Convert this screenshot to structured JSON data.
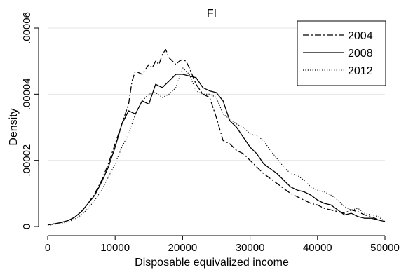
{
  "chart_data": {
    "type": "line",
    "title": "FI",
    "xlabel": "Disposable equivalized income",
    "ylabel": "Density",
    "xlim": [
      0,
      50000
    ],
    "ylim": [
      0,
      6e-05
    ],
    "x_ticks": [
      {
        "value": 0,
        "label": "0"
      },
      {
        "value": 10000,
        "label": "10000"
      },
      {
        "value": 20000,
        "label": "20000"
      },
      {
        "value": 30000,
        "label": "30000"
      },
      {
        "value": 40000,
        "label": "40000"
      },
      {
        "value": 50000,
        "label": "50000"
      }
    ],
    "y_ticks": [
      {
        "value": 0,
        "label": "0"
      },
      {
        "value": 2e-05,
        "label": ".00002"
      },
      {
        "value": 4e-05,
        "label": ".00004"
      },
      {
        "value": 6e-05,
        "label": ".00006"
      }
    ],
    "grid": true,
    "legend_position": "top-right",
    "series": [
      {
        "name": "2004",
        "style": "dashdot",
        "x": [
          0,
          1000,
          2000,
          3000,
          4000,
          5000,
          6000,
          7000,
          8000,
          9000,
          10000,
          11000,
          12000,
          12500,
          13000,
          14000,
          15000,
          15500,
          16000,
          16500,
          17000,
          17500,
          18000,
          19000,
          19500,
          20000,
          20500,
          21000,
          22000,
          23000,
          24000,
          25000,
          26000,
          27000,
          28000,
          29000,
          30000,
          31000,
          32000,
          33000,
          34000,
          35000,
          36000,
          37000,
          38000,
          39000,
          40000,
          41000,
          42000,
          43000,
          44000,
          45000,
          46000,
          47000,
          48000,
          49000,
          50000
        ],
        "y": [
          5e-07,
          8e-07,
          1.2e-06,
          1.8e-06,
          2.8e-06,
          4.5e-06,
          7e-06,
          1e-05,
          1.4e-05,
          1.9e-05,
          2.5e-05,
          3.1e-05,
          3.7e-05,
          4.4e-05,
          4.7e-05,
          4.6e-05,
          4.9e-05,
          4.8e-05,
          5e-05,
          4.9e-05,
          5.2e-05,
          5.35e-05,
          5.1e-05,
          4.9e-05,
          5e-05,
          5.05e-05,
          5e-05,
          4.8e-05,
          4.3e-05,
          4e-05,
          3.9e-05,
          3.3e-05,
          2.6e-05,
          2.5e-05,
          2.3e-05,
          2.2e-05,
          2e-05,
          1.8e-05,
          1.6e-05,
          1.45e-05,
          1.3e-05,
          1.15e-05,
          1e-05,
          9e-06,
          8e-06,
          7e-06,
          6.5e-06,
          5.5e-06,
          5e-06,
          4.5e-06,
          4e-06,
          5e-06,
          4.5e-06,
          3.5e-06,
          3e-06,
          2e-06,
          1.5e-06
        ]
      },
      {
        "name": "2008",
        "style": "solid",
        "x": [
          0,
          1000,
          2000,
          3000,
          4000,
          5000,
          6000,
          7000,
          8000,
          9000,
          10000,
          11000,
          12000,
          13000,
          14000,
          15000,
          16000,
          17000,
          18000,
          19000,
          20000,
          21000,
          22000,
          23000,
          24000,
          25000,
          26000,
          27000,
          28000,
          29000,
          30000,
          31000,
          32000,
          33000,
          34000,
          35000,
          36000,
          37000,
          38000,
          39000,
          40000,
          41000,
          42000,
          43000,
          44000,
          45000,
          46000,
          47000,
          48000,
          49000,
          50000
        ],
        "y": [
          5e-07,
          8e-07,
          1.2e-06,
          1.8e-06,
          2.8e-06,
          4.5e-06,
          7e-06,
          9.5e-06,
          1.35e-05,
          1.8e-05,
          2.4e-05,
          3.1e-05,
          3.5e-05,
          3.4e-05,
          3.8e-05,
          3.7e-05,
          4.3e-05,
          4.2e-05,
          4.4e-05,
          4.6e-05,
          4.6e-05,
          4.55e-05,
          4.5e-05,
          4.2e-05,
          4.1e-05,
          4.05e-05,
          3.8e-05,
          3.2e-05,
          3e-05,
          2.7e-05,
          2.4e-05,
          2.2e-05,
          1.9e-05,
          1.75e-05,
          1.6e-05,
          1.4e-05,
          1.2e-05,
          1.1e-05,
          1.05e-05,
          9.5e-06,
          8e-06,
          7e-06,
          6.5e-06,
          5e-06,
          3.5e-06,
          4e-06,
          3e-06,
          2.5e-06,
          2.5e-06,
          2e-06,
          1.5e-06
        ]
      },
      {
        "name": "2012",
        "style": "dotted",
        "x": [
          0,
          1000,
          2000,
          3000,
          4000,
          5000,
          6000,
          7000,
          8000,
          9000,
          10000,
          11000,
          12000,
          13000,
          14000,
          15000,
          16000,
          17000,
          18000,
          19000,
          20000,
          21000,
          22000,
          23000,
          24000,
          25000,
          26000,
          27000,
          28000,
          29000,
          30000,
          31000,
          32000,
          33000,
          34000,
          35000,
          36000,
          37000,
          38000,
          39000,
          40000,
          41000,
          42000,
          43000,
          44000,
          45000,
          46000,
          47000,
          48000,
          49000,
          50000
        ],
        "y": [
          3e-07,
          6e-07,
          9e-07,
          1.4e-06,
          2.2e-06,
          3.5e-06,
          5.5e-06,
          8e-06,
          1.1e-05,
          1.5e-05,
          1.9e-05,
          2.4e-05,
          2.8e-05,
          3.4e-05,
          3.8e-05,
          4e-05,
          4.05e-05,
          3.9e-05,
          4e-05,
          4.2e-05,
          4.8e-05,
          4.6e-05,
          4.1e-05,
          4e-05,
          4e-05,
          3.9e-05,
          3.4e-05,
          3.25e-05,
          3.1e-05,
          3e-05,
          2.8e-05,
          2.75e-05,
          2.6e-05,
          2.3e-05,
          2.05e-05,
          1.8e-05,
          1.6e-05,
          1.55e-05,
          1.4e-05,
          1.2e-05,
          1.1e-05,
          1.05e-05,
          9.5e-06,
          8e-06,
          6e-06,
          5e-06,
          5.5e-06,
          4e-06,
          3.5e-06,
          3e-06,
          1.5e-06
        ]
      }
    ]
  }
}
